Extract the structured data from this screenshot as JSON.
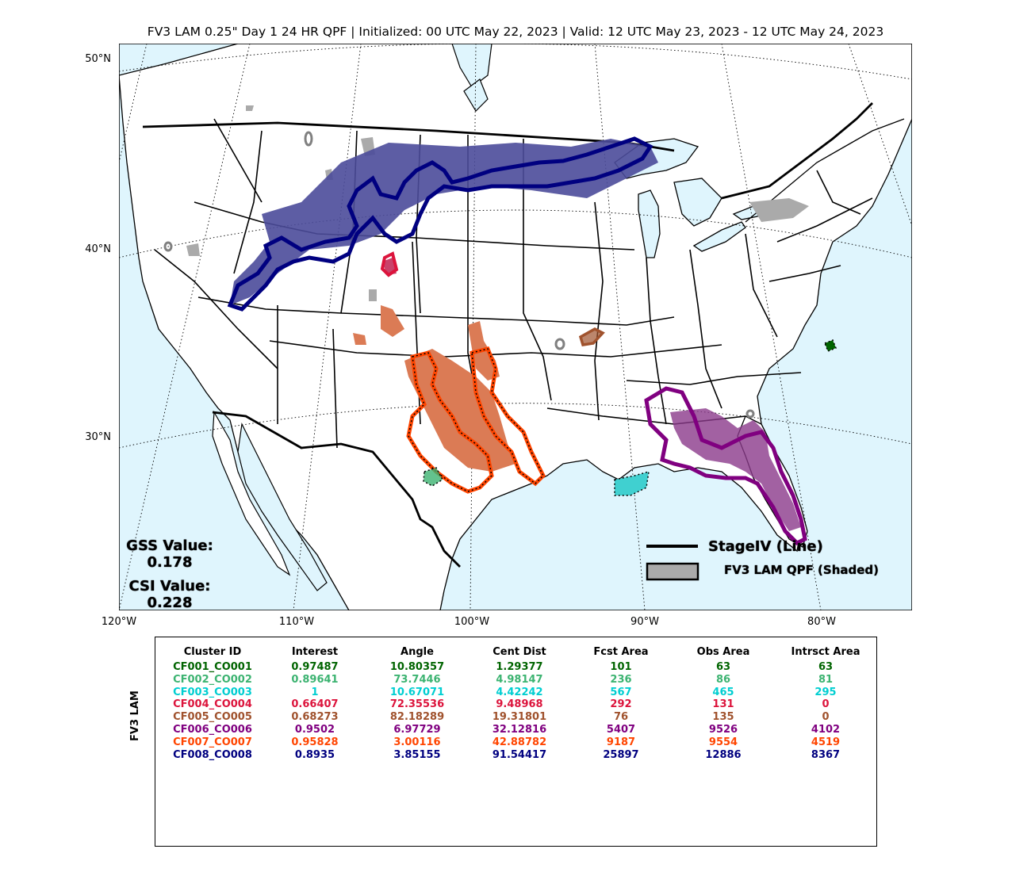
{
  "title": "FV3 LAM 0.25\" Day 1 24 HR QPF | Initialized: 00 UTC May 22, 2023 | Valid: 12 UTC May 23, 2023 - 12 UTC May 24, 2023",
  "lat_labels": [
    "50°N",
    "40°N",
    "30°N"
  ],
  "lon_labels": [
    "120°W",
    "110°W",
    "100°W",
    "90°W",
    "80°W"
  ],
  "stats": {
    "gss_label": "GSS Value:",
    "gss_value": "0.178",
    "csi_label": "CSI Value:",
    "csi_value": "0.228"
  },
  "legend": {
    "line_label": "StageIV (Line)",
    "shaded_label": "FV3 LAM QPF (Shaded)"
  },
  "table": {
    "side_label": "FV3 LAM",
    "headers": [
      "Cluster ID",
      "Interest",
      "Angle",
      "Cent Dist",
      "Fcst Area",
      "Obs Area",
      "Intrsct Area"
    ],
    "rows": [
      {
        "color": "#006400",
        "cells": [
          "CF001_CO001",
          "0.97487",
          "10.80357",
          "1.29377",
          "101",
          "63",
          "63"
        ]
      },
      {
        "color": "#3cb371",
        "cells": [
          "CF002_CO002",
          "0.89641",
          "73.7446",
          "4.98147",
          "236",
          "86",
          "81"
        ]
      },
      {
        "color": "#00ced1",
        "cells": [
          "CF003_CO003",
          "1",
          "10.67071",
          "4.42242",
          "567",
          "465",
          "295"
        ]
      },
      {
        "color": "#dc143c",
        "cells": [
          "CF004_CO004",
          "0.66407",
          "72.35536",
          "9.48968",
          "292",
          "131",
          "0"
        ]
      },
      {
        "color": "#a0522d",
        "cells": [
          "CF005_CO005",
          "0.68273",
          "82.18289",
          "19.31801",
          "76",
          "135",
          "0"
        ]
      },
      {
        "color": "#800080",
        "cells": [
          "CF006_CO006",
          "0.9502",
          "6.97729",
          "32.12816",
          "5407",
          "9526",
          "4102"
        ]
      },
      {
        "color": "#ff4500",
        "cells": [
          "CF007_CO007",
          "0.95828",
          "3.00116",
          "42.88782",
          "9187",
          "9554",
          "4519"
        ]
      },
      {
        "color": "#000080",
        "cells": [
          "CF008_CO008",
          "0.8935",
          "3.85155",
          "91.54417",
          "25897",
          "12886",
          "8367"
        ]
      }
    ]
  },
  "colors": {
    "water": "#dff5fd",
    "fcst_gray": "#aaaaaa",
    "obs_gray": "#808080"
  }
}
